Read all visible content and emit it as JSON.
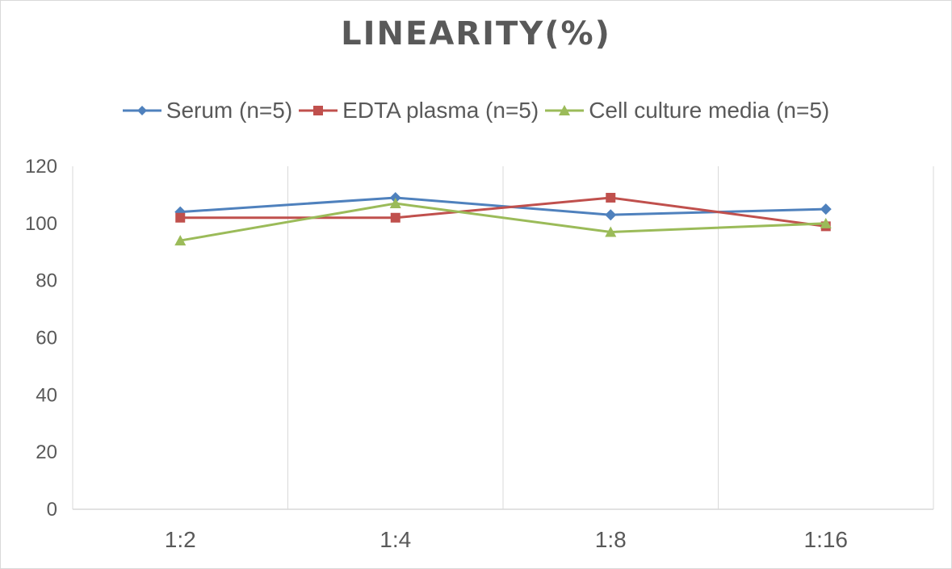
{
  "chart_data": {
    "type": "line",
    "title": "LINEARITY(%)",
    "xlabel": "",
    "ylabel": "",
    "categories": [
      "1:2",
      "1:4",
      "1:8",
      "1:16"
    ],
    "ylim": [
      0,
      120
    ],
    "yticks": [
      0,
      20,
      40,
      60,
      80,
      100,
      120
    ],
    "grid": "vertical",
    "legend_position": "top",
    "series": [
      {
        "name": "Serum (n=5)",
        "color": "#4f81bd",
        "marker": "diamond",
        "values": [
          104,
          109,
          103,
          105
        ]
      },
      {
        "name": "EDTA plasma (n=5)",
        "color": "#c0504d",
        "marker": "square",
        "values": [
          102,
          102,
          109,
          99
        ]
      },
      {
        "name": "Cell culture media (n=5)",
        "color": "#9bbb59",
        "marker": "triangle",
        "values": [
          94,
          107,
          97,
          100
        ]
      }
    ]
  }
}
